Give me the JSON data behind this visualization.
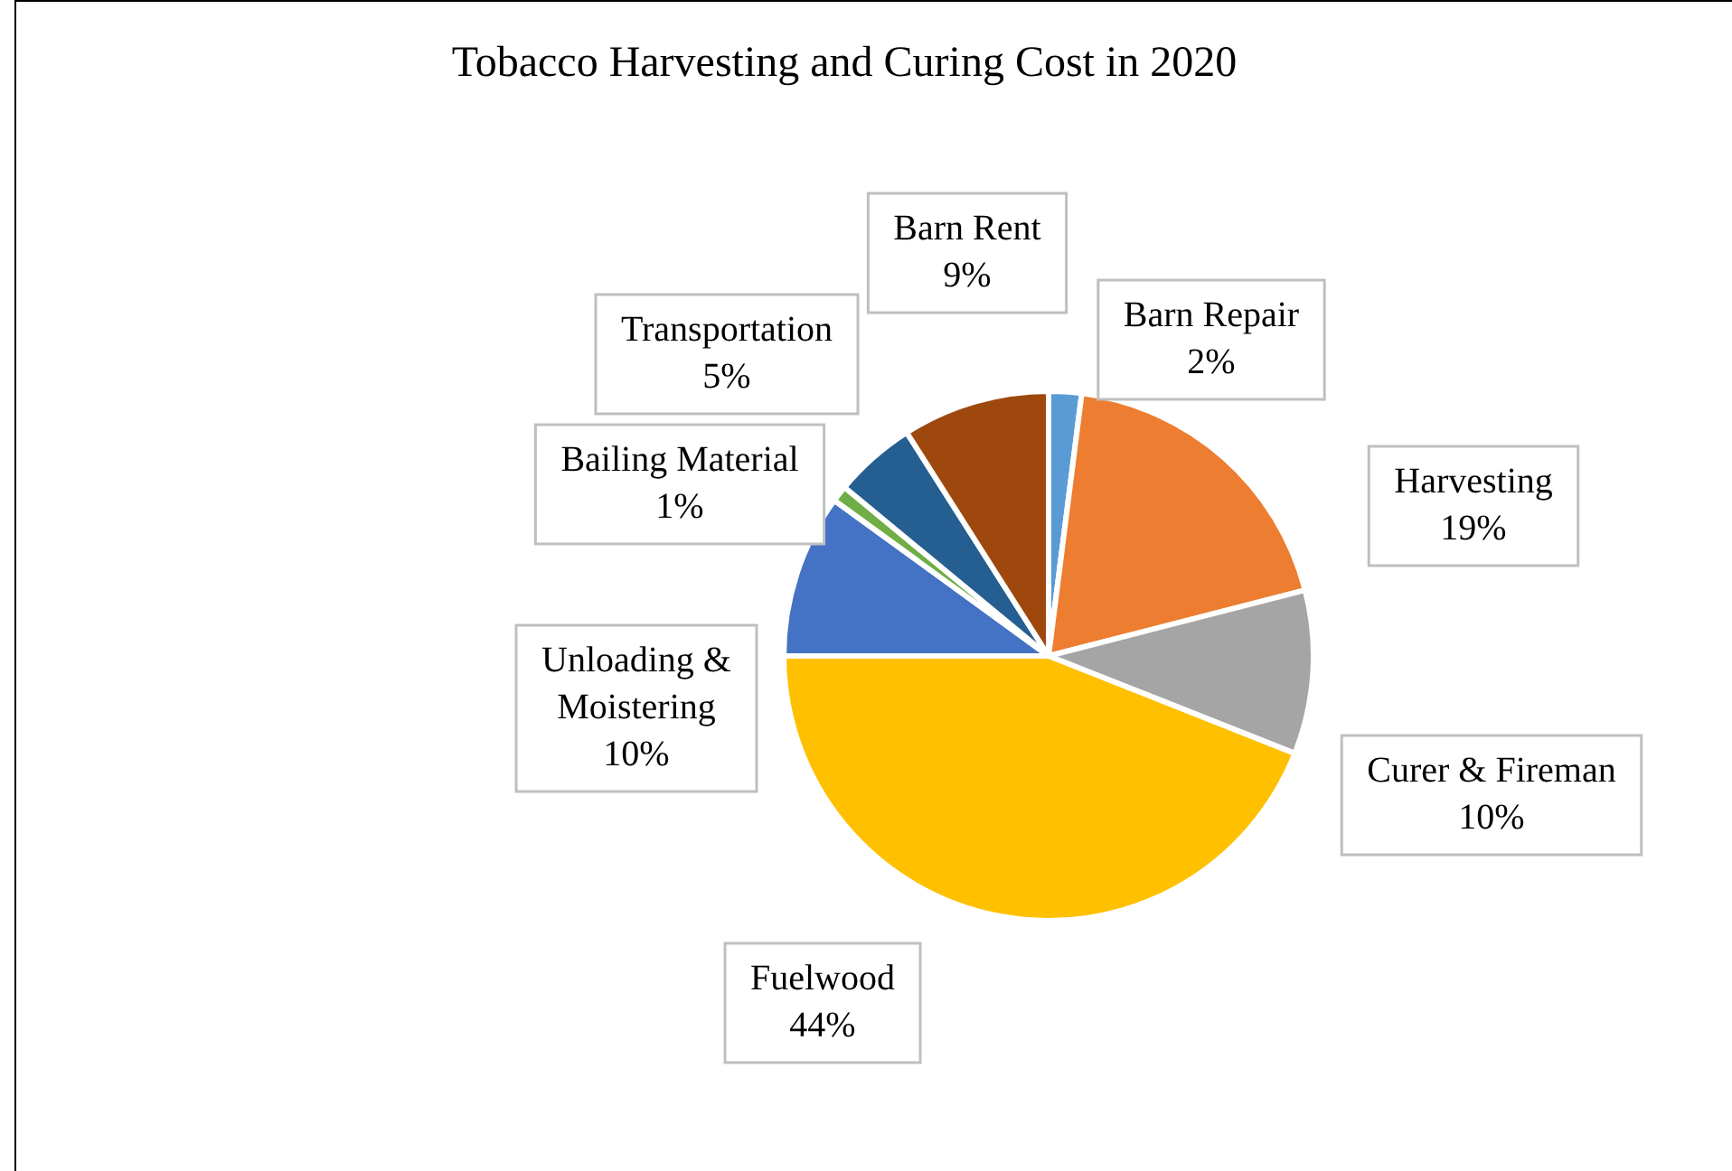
{
  "chart_data": {
    "type": "pie",
    "title": "Tobacco Harvesting and Curing Cost in 2020",
    "categories": [
      "Barn Repair",
      "Harvesting",
      "Curer & Fireman",
      "Fuelwood",
      "Unloading & Moistering",
      "Bailing Material",
      "Transportation",
      "Barn Rent"
    ],
    "values": [
      2,
      19,
      10,
      44,
      10,
      1,
      5,
      9
    ],
    "colors": [
      "#5b9bd5",
      "#ed7d31",
      "#a5a5a5",
      "#ffc000",
      "#4472c4",
      "#70ad47",
      "#255e91",
      "#9e480e"
    ],
    "value_labels": [
      "2%",
      "19%",
      "10%",
      "44%",
      "10%",
      "1%",
      "5%",
      "9%"
    ],
    "legend": false
  }
}
